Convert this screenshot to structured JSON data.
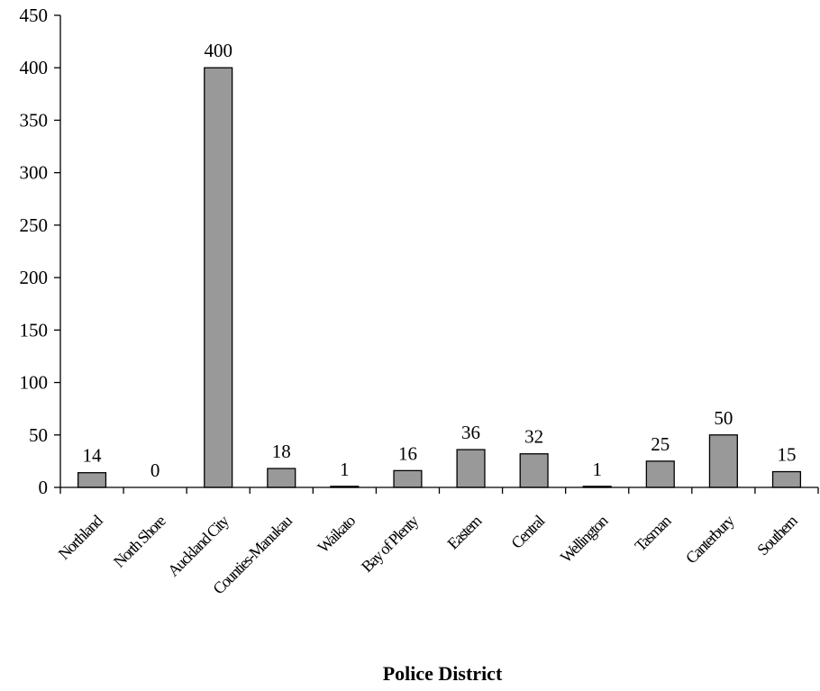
{
  "chart_data": {
    "type": "bar",
    "categories": [
      "Northland",
      "North Shore",
      "Auckland City",
      "Counties-Manukau",
      "Waikato",
      "Bay of Plenty",
      "Eastern",
      "Central",
      "Wellington",
      "Tasman",
      "Canterbury",
      "Southern"
    ],
    "values": [
      14,
      0,
      400,
      18,
      1,
      16,
      36,
      32,
      1,
      25,
      50,
      15
    ],
    "data_labels": [
      "14",
      "0",
      "400",
      "18",
      "1",
      "16",
      "36",
      "32",
      "1",
      "25",
      "50",
      "15"
    ],
    "y_ticks": [
      "0",
      "50",
      "100",
      "150",
      "200",
      "250",
      "300",
      "350",
      "400",
      "450"
    ],
    "ylim": [
      0,
      450
    ],
    "xlabel": "Police District",
    "ylabel": "",
    "title": "",
    "grid": false,
    "colors": {
      "bar": "#999999",
      "outline": "#000000"
    }
  }
}
